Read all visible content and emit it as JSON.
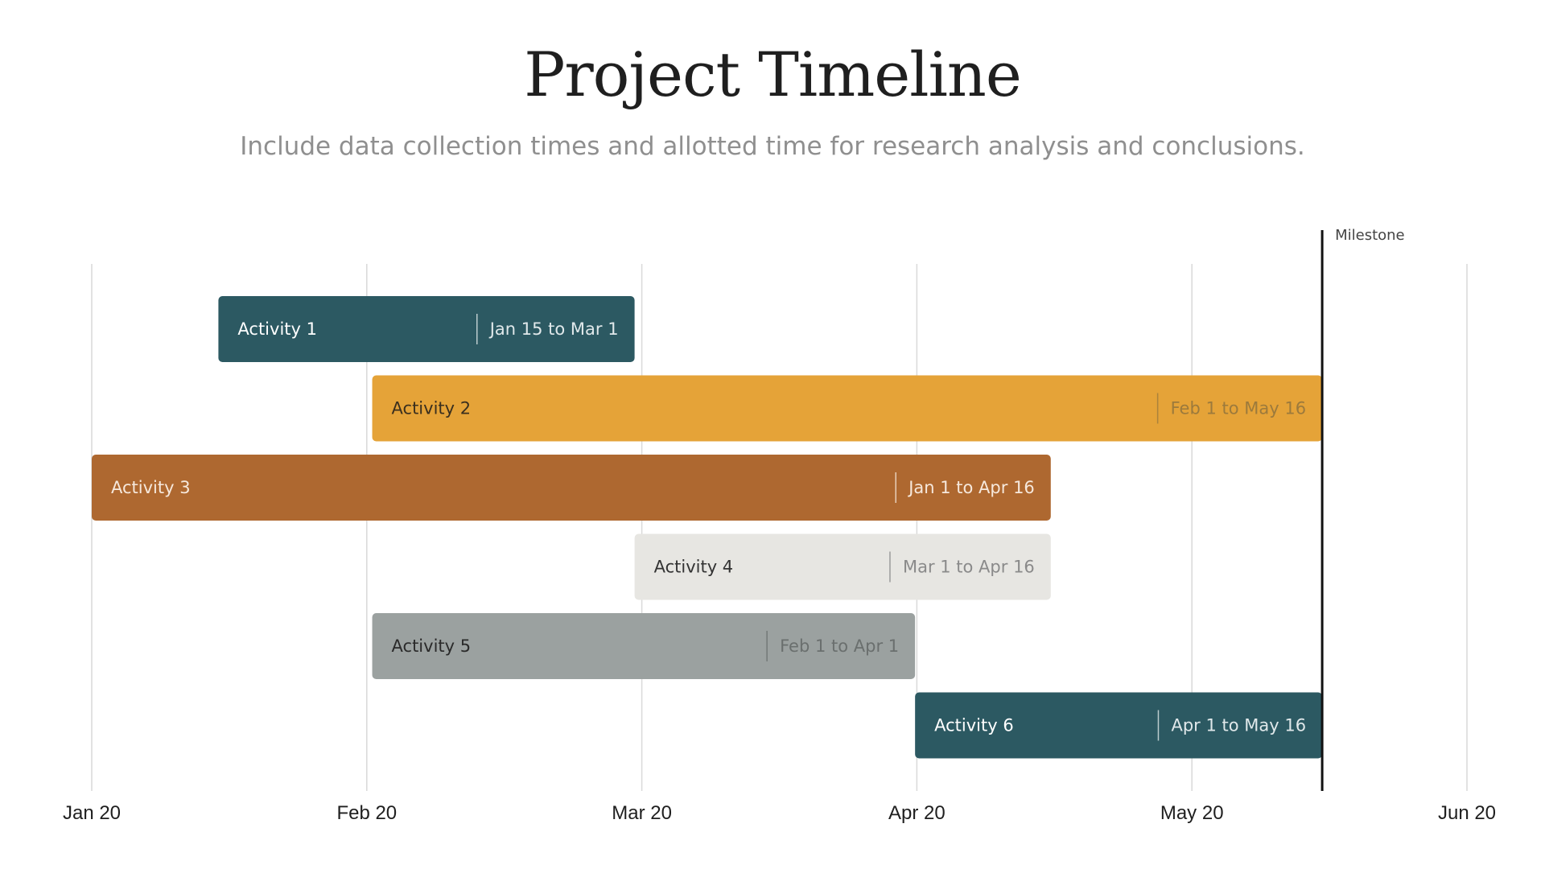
{
  "header": {
    "title": "Project Timeline",
    "subtitle": "Include data collection times and allotted time for research analysis and conclusions."
  },
  "chart_data": {
    "type": "gantt",
    "x_ticks": [
      "Jan 20",
      "Feb 20",
      "Mar 20",
      "Apr 20",
      "May 20",
      "Jun 20"
    ],
    "x_range": [
      "2020-01-01",
      "2020-06-01"
    ],
    "grid": true,
    "milestone": {
      "label": "Milestone",
      "date": "2020-05-16"
    },
    "tasks": [
      {
        "name": "Activity 1",
        "range_label": "Jan 15 to Mar 1",
        "start": "2020-01-15",
        "end": "2020-03-01",
        "color": "#2c5962",
        "text_color": "#ffffff",
        "range_color": "#e0e8ea"
      },
      {
        "name": "Activity 2",
        "range_label": "Feb 1 to May 16",
        "start": "2020-02-01",
        "end": "2020-05-16",
        "color": "#e5a338",
        "text_color": "#3a2f1e",
        "range_color": "#9c7a3c"
      },
      {
        "name": "Activity 3",
        "range_label": "Jan 1 to Apr 16",
        "start": "2020-01-01",
        "end": "2020-04-16",
        "color": "#ae6830",
        "text_color": "#f6e8dc",
        "range_color": "#f6e8dc"
      },
      {
        "name": "Activity 4",
        "range_label": "Mar 1 to Apr 16",
        "start": "2020-03-01",
        "end": "2020-04-16",
        "color": "#e7e6e2",
        "text_color": "#333333",
        "range_color": "#8a8a8a"
      },
      {
        "name": "Activity 5",
        "range_label": "Feb 1 to Apr 1",
        "start": "2020-02-01",
        "end": "2020-04-01",
        "color": "#9ba1a0",
        "text_color": "#2a2a2a",
        "range_color": "#6a6f6e"
      },
      {
        "name": "Activity 6",
        "range_label": "Apr 1 to May 16",
        "start": "2020-04-01",
        "end": "2020-05-16",
        "color": "#2c5962",
        "text_color": "#ffffff",
        "range_color": "#e0e8ea"
      }
    ]
  }
}
